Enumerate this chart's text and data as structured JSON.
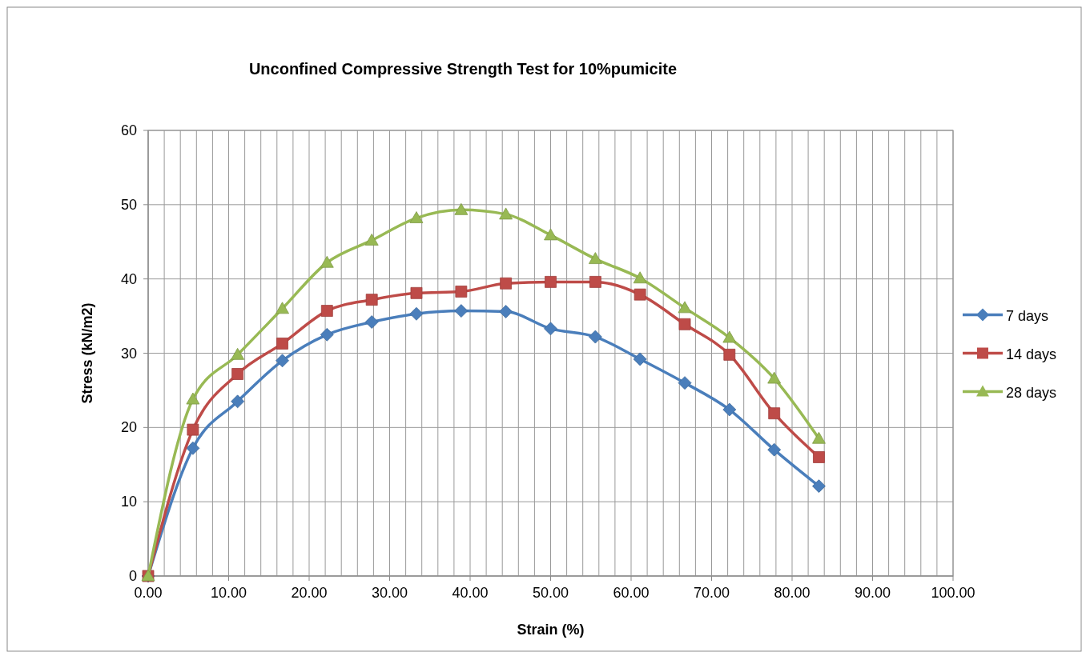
{
  "chart_data": {
    "type": "line",
    "title": "Unconfined Compressive Strength Test for 10%pumicite",
    "xlabel": "Strain (%)",
    "ylabel": "Stress (kN/m2)",
    "x": [
      0,
      5.56,
      11.11,
      16.67,
      22.22,
      27.78,
      33.33,
      38.89,
      44.44,
      50,
      55.56,
      61.11,
      66.67,
      72.22,
      77.78,
      83.33
    ],
    "series": [
      {
        "name": "7 days",
        "color": "#4a7ebb",
        "marker": "diamond",
        "values": [
          0,
          17.2,
          23.5,
          29,
          32.5,
          34.2,
          35.3,
          35.7,
          35.6,
          33.3,
          32.2,
          29.2,
          26,
          22.4,
          17,
          12.1
        ]
      },
      {
        "name": "14 days",
        "color": "#be4b48",
        "marker": "square",
        "values": [
          0,
          19.7,
          27.2,
          31.3,
          35.7,
          37.2,
          38.1,
          38.3,
          39.4,
          39.6,
          39.6,
          37.9,
          33.9,
          29.8,
          21.9,
          16
        ]
      },
      {
        "name": "28 days",
        "color": "#98b954",
        "marker": "triangle",
        "values": [
          0,
          23.8,
          29.8,
          36,
          42.2,
          45.2,
          48.2,
          49.3,
          48.7,
          45.9,
          42.7,
          40.1,
          36.1,
          32.1,
          26.6,
          18.5
        ]
      }
    ],
    "xlim": [
      0,
      100
    ],
    "xticks": [
      {
        "value": 0,
        "label": "0.00"
      },
      {
        "value": 2,
        "label": null
      },
      {
        "value": 4,
        "label": null
      },
      {
        "value": 6,
        "label": null
      },
      {
        "value": 8,
        "label": null
      },
      {
        "value": 10,
        "label": "10.00"
      },
      {
        "value": 12,
        "label": null
      },
      {
        "value": 14,
        "label": null
      },
      {
        "value": 16,
        "label": null
      },
      {
        "value": 18,
        "label": null
      },
      {
        "value": 20,
        "label": "20.00"
      },
      {
        "value": 22,
        "label": null
      },
      {
        "value": 24,
        "label": null
      },
      {
        "value": 26,
        "label": null
      },
      {
        "value": 28,
        "label": null
      },
      {
        "value": 30,
        "label": "30.00"
      },
      {
        "value": 32,
        "label": null
      },
      {
        "value": 34,
        "label": null
      },
      {
        "value": 36,
        "label": null
      },
      {
        "value": 38,
        "label": null
      },
      {
        "value": 40,
        "label": "40.00"
      },
      {
        "value": 42,
        "label": null
      },
      {
        "value": 44,
        "label": null
      },
      {
        "value": 46,
        "label": null
      },
      {
        "value": 48,
        "label": null
      },
      {
        "value": 50,
        "label": "50.00"
      },
      {
        "value": 52,
        "label": null
      },
      {
        "value": 54,
        "label": null
      },
      {
        "value": 56,
        "label": null
      },
      {
        "value": 58,
        "label": null
      },
      {
        "value": 60,
        "label": "60.00"
      },
      {
        "value": 62,
        "label": null
      },
      {
        "value": 64,
        "label": null
      },
      {
        "value": 66,
        "label": null
      },
      {
        "value": 68,
        "label": null
      },
      {
        "value": 70,
        "label": "70.00"
      },
      {
        "value": 72,
        "label": null
      },
      {
        "value": 74,
        "label": null
      },
      {
        "value": 76,
        "label": null
      },
      {
        "value": 78,
        "label": null
      },
      {
        "value": 80,
        "label": "80.00"
      },
      {
        "value": 82,
        "label": null
      },
      {
        "value": 84,
        "label": null
      },
      {
        "value": 86,
        "label": null
      },
      {
        "value": 88,
        "label": null
      },
      {
        "value": 90,
        "label": "90.00"
      },
      {
        "value": 92,
        "label": null
      },
      {
        "value": 94,
        "label": null
      },
      {
        "value": 96,
        "label": null
      },
      {
        "value": 98,
        "label": null
      },
      {
        "value": 100,
        "label": "100.00"
      }
    ],
    "ylim": [
      0,
      60
    ],
    "yticks": [
      0,
      10,
      20,
      30,
      40,
      50,
      60
    ],
    "grid": true,
    "legend": "right",
    "line_style": "solid"
  }
}
